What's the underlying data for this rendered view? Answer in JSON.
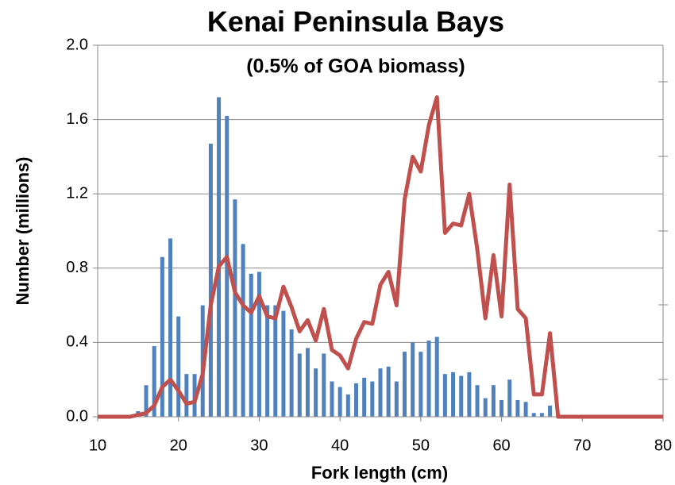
{
  "chart_data": {
    "type": "bar",
    "title": "Kenai Peninsula Bays",
    "subtitle": "(0.5% of GOA biomass)",
    "x_label": "Fork length (cm)",
    "y_label": "Number (millions)",
    "x": [
      10,
      11,
      12,
      13,
      14,
      15,
      16,
      17,
      18,
      19,
      20,
      21,
      22,
      23,
      24,
      25,
      26,
      27,
      28,
      29,
      30,
      31,
      32,
      33,
      34,
      35,
      36,
      37,
      38,
      39,
      40,
      41,
      42,
      43,
      44,
      45,
      46,
      47,
      48,
      49,
      50,
      51,
      52,
      53,
      54,
      55,
      56,
      57,
      58,
      59,
      60,
      61,
      62,
      63,
      64,
      65,
      66,
      67,
      68,
      69,
      70,
      71,
      72,
      73,
      74,
      75,
      76,
      77,
      78,
      79,
      80
    ],
    "series": [
      {
        "type": "bar",
        "color": "#4f81bd",
        "values": [
          0,
          0,
          0,
          0,
          0,
          0.03,
          0.17,
          0.38,
          0.86,
          0.96,
          0.54,
          0.23,
          0.23,
          0.6,
          1.47,
          1.72,
          1.62,
          1.17,
          0.93,
          0.77,
          0.78,
          0.6,
          0.6,
          0.57,
          0.47,
          0.34,
          0.37,
          0.26,
          0.34,
          0.19,
          0.16,
          0.12,
          0.18,
          0.21,
          0.19,
          0.26,
          0.27,
          0.19,
          0.35,
          0.4,
          0.35,
          0.41,
          0.43,
          0.23,
          0.24,
          0.22,
          0.24,
          0.17,
          0.1,
          0.17,
          0.09,
          0.2,
          0.09,
          0.08,
          0.02,
          0.02,
          0.06,
          0,
          0,
          0,
          0,
          0,
          0,
          0,
          0,
          0,
          0,
          0,
          0,
          0,
          0
        ]
      },
      {
        "type": "line",
        "color": "#c0504d",
        "values": [
          0,
          0,
          0,
          0,
          0,
          0.01,
          0.02,
          0.06,
          0.16,
          0.2,
          0.14,
          0.07,
          0.08,
          0.23,
          0.6,
          0.81,
          0.86,
          0.67,
          0.6,
          0.56,
          0.65,
          0.54,
          0.53,
          0.7,
          0.59,
          0.46,
          0.52,
          0.41,
          0.58,
          0.36,
          0.33,
          0.26,
          0.42,
          0.51,
          0.5,
          0.71,
          0.78,
          0.6,
          1.17,
          1.4,
          1.32,
          1.57,
          1.72,
          0.99,
          1.04,
          1.03,
          1.2,
          0.9,
          0.53,
          0.87,
          0.54,
          1.25,
          0.58,
          0.53,
          0.12,
          0.12,
          0.45,
          0,
          0,
          0,
          0,
          0,
          0,
          0,
          0,
          0,
          0,
          0,
          0,
          0,
          0
        ]
      }
    ],
    "xlim": [
      10,
      80
    ],
    "xticks": [
      10,
      20,
      30,
      40,
      50,
      60,
      70,
      80
    ],
    "ylim": [
      0,
      2
    ],
    "yticks": [
      {
        "value": 0,
        "label": "0.0"
      },
      0.4,
      0.8,
      1.2,
      1.6,
      {
        "value": 2,
        "label": "2.0"
      }
    ],
    "grid": true
  }
}
